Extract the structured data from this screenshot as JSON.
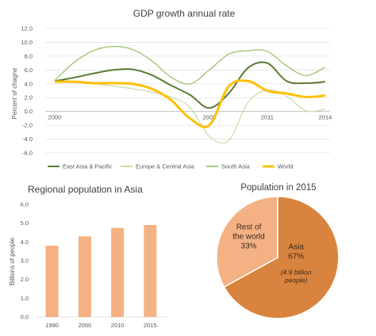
{
  "chart_data": [
    {
      "type": "line",
      "title": "GDP growth annual rate",
      "ylabel": "Percent of chagne",
      "xlabel": "",
      "x": [
        2000,
        2001,
        2002,
        2003,
        2004,
        2005,
        2006,
        2007,
        2008,
        2009,
        2010,
        2011,
        2012,
        2013,
        2014
      ],
      "x_ticks": [
        "2000",
        "2008",
        "2011",
        "2014"
      ],
      "x_tick_positions": [
        2000,
        2008,
        2011,
        2014
      ],
      "ylim": [
        -6,
        12
      ],
      "y_ticks": [
        "12.0",
        "10.0",
        "8.0",
        "6.0",
        "4.0",
        "2.0",
        "0.0",
        "-2.0",
        "-4.0",
        "-6.0"
      ],
      "y_tick_values": [
        12,
        10,
        8,
        6,
        4,
        2,
        0,
        -2,
        -4,
        -6
      ],
      "legend_position": "bottom",
      "series": [
        {
          "name": "East Asia & Pacific",
          "color": "#5a7a33",
          "values": [
            4.4,
            4.9,
            5.5,
            6.0,
            6.1,
            5.3,
            3.8,
            2.4,
            0.5,
            2.6,
            6.3,
            7.0,
            4.4,
            4.1,
            4.3
          ]
        },
        {
          "name": "Europe & Central Asia",
          "color": "#c9dca8",
          "values": [
            4.4,
            4.2,
            4.0,
            3.7,
            3.3,
            2.8,
            2.1,
            0.6,
            -3.6,
            -4.2,
            1.3,
            3.1,
            2.2,
            0.1,
            0.3
          ]
        },
        {
          "name": "South Asia",
          "color": "#a9c981",
          "values": [
            4.5,
            7.1,
            8.8,
            9.4,
            9.0,
            7.4,
            5.0,
            4.0,
            6.0,
            8.3,
            8.8,
            8.7,
            6.6,
            5.2,
            6.4
          ]
        },
        {
          "name": "World",
          "color": "#ffc000",
          "values": [
            4.3,
            4.3,
            4.1,
            4.1,
            4.0,
            3.3,
            1.7,
            -1.0,
            -2.0,
            3.6,
            4.4,
            3.0,
            2.6,
            2.1,
            2.3
          ]
        }
      ]
    },
    {
      "type": "bar",
      "title": "Regional population in Asia",
      "ylabel": "Billions of people",
      "xlabel": "",
      "categories": [
        "1990",
        "2000",
        "2010",
        "2015"
      ],
      "values": [
        3.8,
        4.3,
        4.75,
        4.9
      ],
      "ylim": [
        0,
        6
      ],
      "y_ticks": [
        "6.0",
        "5.0",
        "4.0",
        "3.0",
        "2.0",
        "1.0",
        "0.0"
      ],
      "y_tick_values": [
        6,
        5,
        4,
        3,
        2,
        1,
        0
      ],
      "color": "#f4b183"
    },
    {
      "type": "pie",
      "title": "Population in 2015",
      "slices": [
        {
          "label": "Asia",
          "percent_label": "67%",
          "note": "(4.9 billion people)",
          "value": 67,
          "color": "#d9843e"
        },
        {
          "label": "Rest of the world",
          "percent_label": "33%",
          "value": 33,
          "color": "#f4b183"
        }
      ]
    }
  ]
}
